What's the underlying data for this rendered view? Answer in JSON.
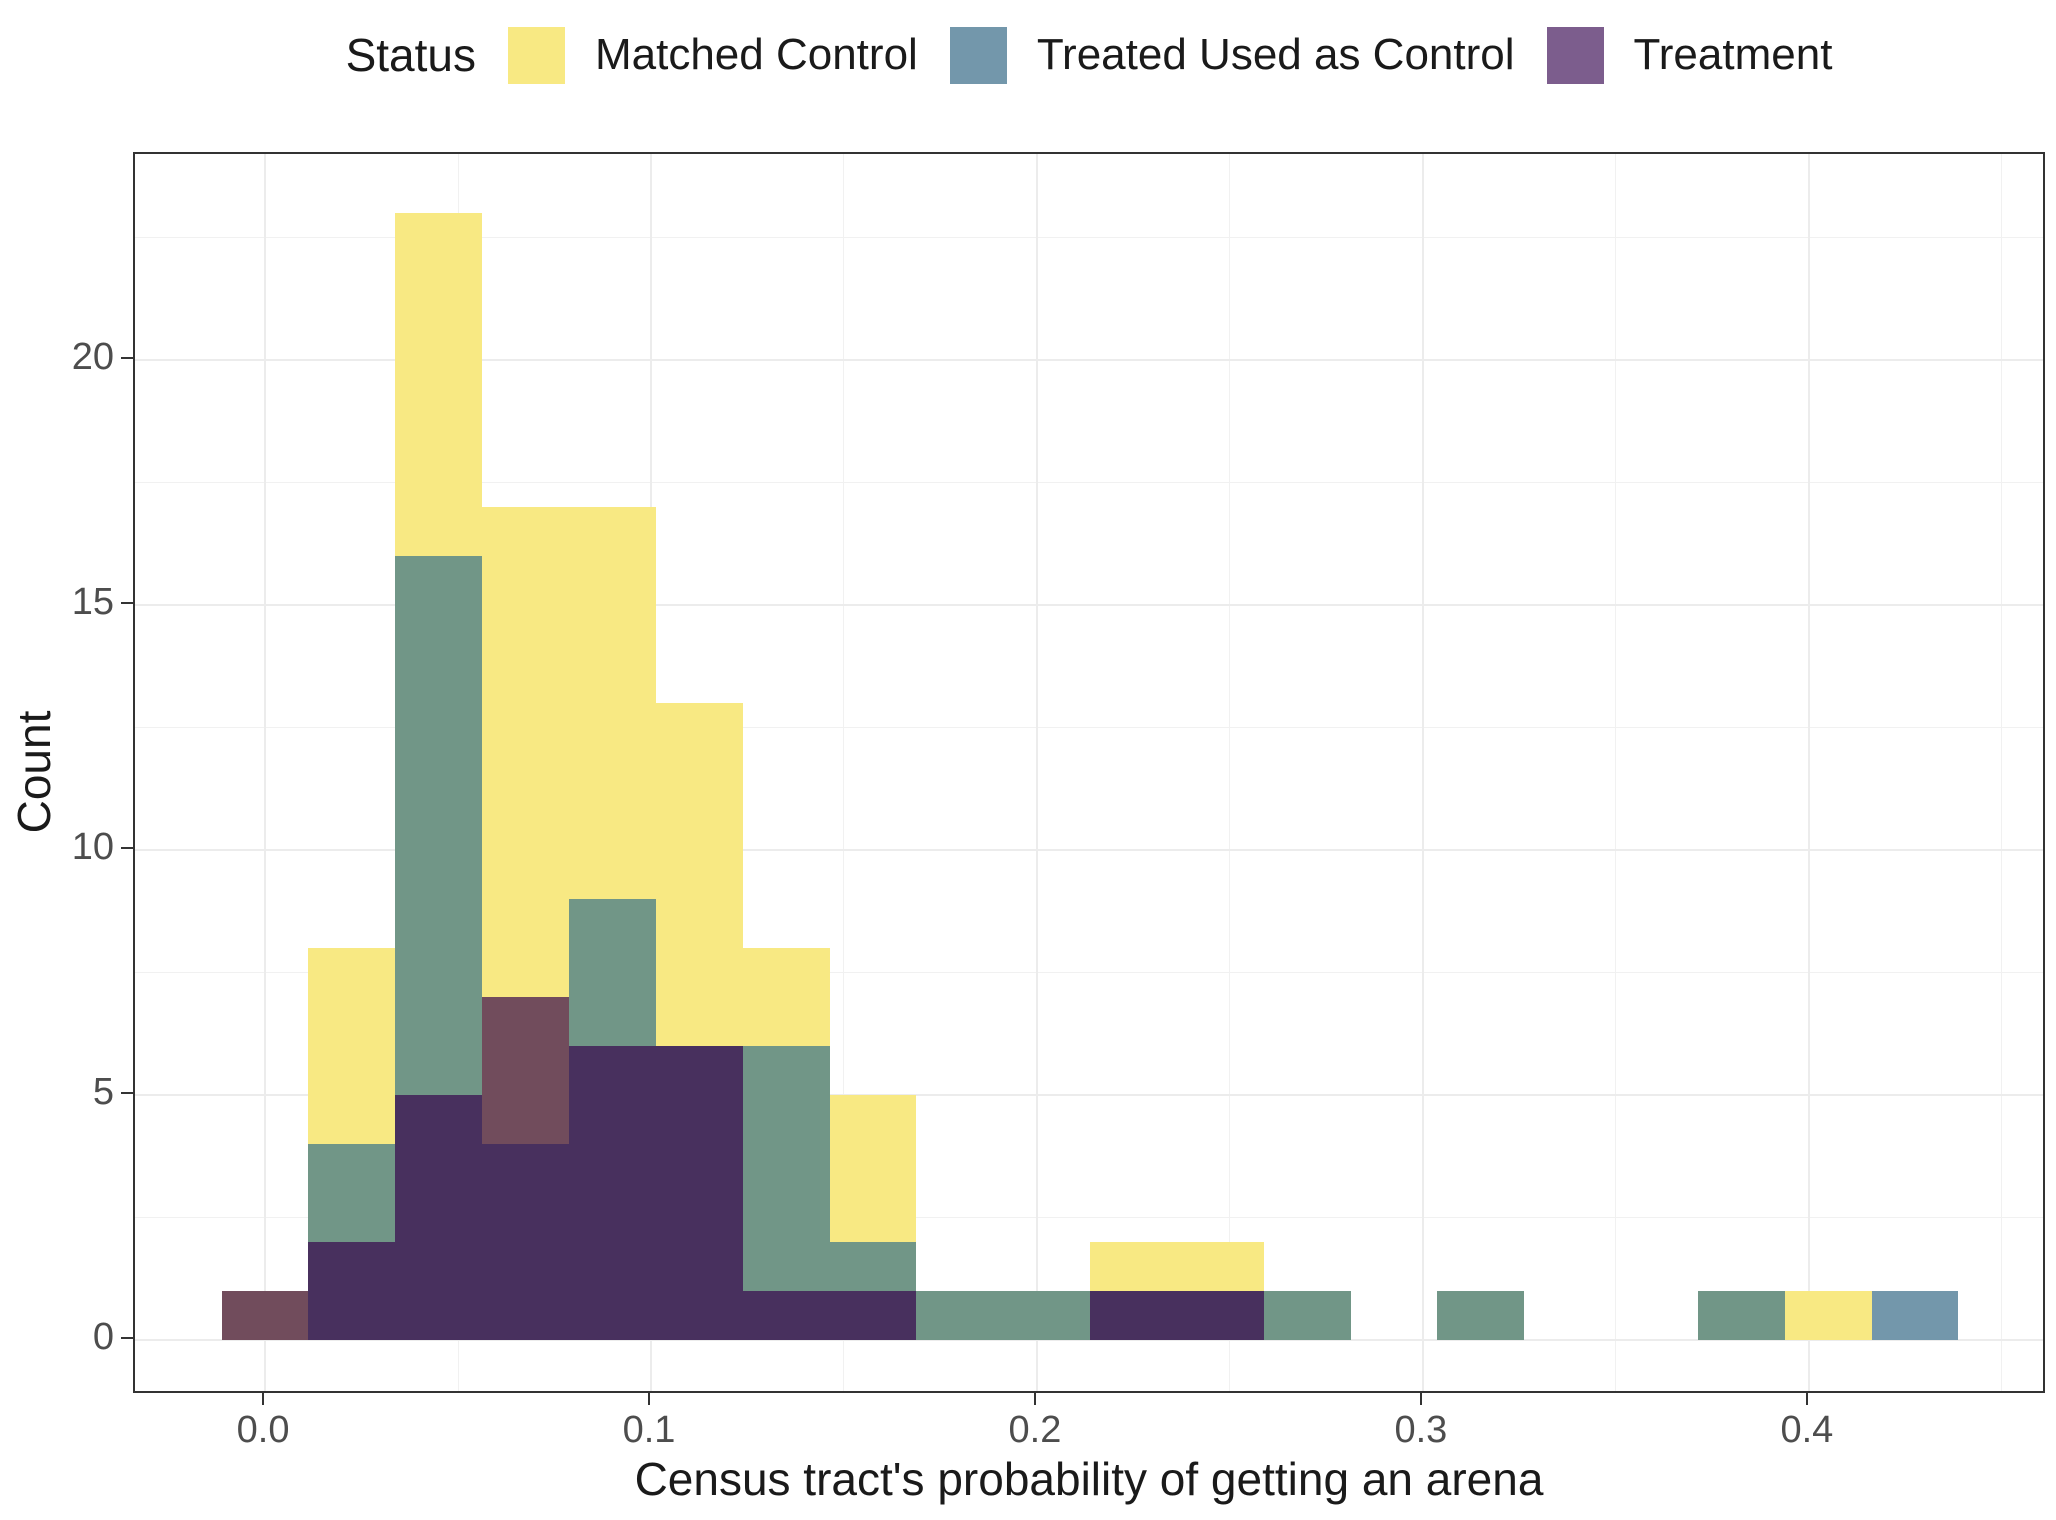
{
  "legend": {
    "title": "Status",
    "items": [
      {
        "label": "Matched Control",
        "key": "mc",
        "color": "#F8E983"
      },
      {
        "label": "Treated Used as Control",
        "key": "tc",
        "color": "#7397AB"
      },
      {
        "label": "Treatment",
        "key": "tr",
        "color": "#7C5D8D"
      }
    ]
  },
  "chart_data": {
    "type": "histogram",
    "mode": "overlaid-identity-alpha",
    "title": "",
    "xlabel": "Census tract's probability of getting an arena",
    "ylabel": "Count",
    "legend_position": "top",
    "grid": "on",
    "bin_width": 0.0225,
    "xlim": [
      -0.0337,
      0.4617
    ],
    "ylim": [
      -1.12,
      24.2
    ],
    "x_ticks": [
      {
        "value": 0.0,
        "label": "0.0"
      },
      {
        "value": 0.1,
        "label": "0.1"
      },
      {
        "value": 0.2,
        "label": "0.2"
      },
      {
        "value": 0.3,
        "label": "0.3"
      },
      {
        "value": 0.4,
        "label": "0.4"
      }
    ],
    "y_ticks": [
      {
        "value": 0,
        "label": "0"
      },
      {
        "value": 5,
        "label": "5"
      },
      {
        "value": 10,
        "label": "10"
      },
      {
        "value": 15,
        "label": "15"
      },
      {
        "value": 20,
        "label": "20"
      }
    ],
    "x_minor": [
      0.05,
      0.15,
      0.25,
      0.35,
      0.45
    ],
    "y_minor": [
      2.5,
      7.5,
      12.5,
      17.5,
      22.5
    ],
    "series": [
      {
        "name": "Matched Control",
        "key": "mc",
        "fill": "#F8E983"
      },
      {
        "name": "Treated Used as Control",
        "key": "tc",
        "fill": "#7397AB"
      },
      {
        "name": "Treatment",
        "key": "tr",
        "fill": "#7C5D8D"
      }
    ],
    "bins": [
      {
        "center": 0.0,
        "mc": 1,
        "tc": 0,
        "tr": 1
      },
      {
        "center": 0.0225,
        "mc": 8,
        "tc": 4,
        "tr": 2
      },
      {
        "center": 0.045,
        "mc": 23,
        "tc": 16,
        "tr": 5
      },
      {
        "center": 0.0675,
        "mc": 17,
        "tc": 4,
        "tr": 7
      },
      {
        "center": 0.09,
        "mc": 17,
        "tc": 9,
        "tr": 6
      },
      {
        "center": 0.1125,
        "mc": 13,
        "tc": 6,
        "tr": 6
      },
      {
        "center": 0.135,
        "mc": 8,
        "tc": 6,
        "tr": 1
      },
      {
        "center": 0.1575,
        "mc": 5,
        "tc": 2,
        "tr": 1
      },
      {
        "center": 0.18,
        "mc": 1,
        "tc": 1,
        "tr": 0
      },
      {
        "center": 0.2025,
        "mc": 1,
        "tc": 1,
        "tr": 0
      },
      {
        "center": 0.225,
        "mc": 2,
        "tc": 1,
        "tr": 1
      },
      {
        "center": 0.2475,
        "mc": 2,
        "tc": 1,
        "tr": 1
      },
      {
        "center": 0.27,
        "mc": 1,
        "tc": 1,
        "tr": 0
      },
      {
        "center": 0.2925,
        "mc": 0,
        "tc": 0,
        "tr": 0
      },
      {
        "center": 0.315,
        "mc": 1,
        "tc": 1,
        "tr": 0
      },
      {
        "center": 0.3375,
        "mc": 0,
        "tc": 0,
        "tr": 0
      },
      {
        "center": 0.36,
        "mc": 0,
        "tc": 0,
        "tr": 0
      },
      {
        "center": 0.3825,
        "mc": 1,
        "tc": 1,
        "tr": 0
      },
      {
        "center": 0.405,
        "mc": 1,
        "tc": 0,
        "tr": 0
      },
      {
        "center": 0.4275,
        "mc": 0,
        "tc": 1,
        "tr": 0
      }
    ],
    "overlay_colors": {
      "mc": "#F8E983",
      "tc": "#7397AB",
      "tr": "#7C5D8D",
      "mc+tc": "#719687",
      "mc+tr": "#714C5C",
      "tc+tr": "#4E3366",
      "mc+tc+tr": "#48305E"
    }
  }
}
